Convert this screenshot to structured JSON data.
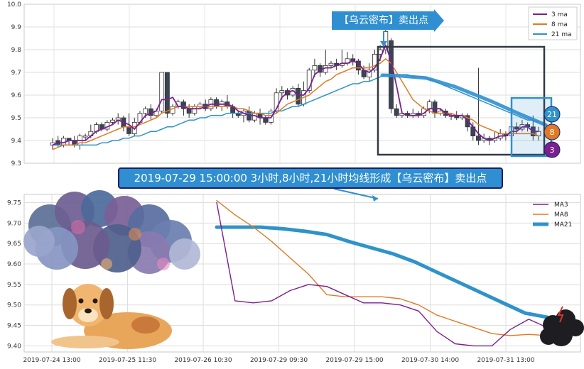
{
  "chart_data": [
    {
      "type": "candlestick",
      "ylim": [
        9.3,
        10.0
      ],
      "yticks": [
        "9.3",
        "9.4",
        "9.5",
        "9.6",
        "9.7",
        "9.8",
        "9.9",
        "10.0"
      ],
      "grid": true,
      "legend_position": "top-right",
      "series": [
        {
          "name": "3 ma",
          "color": "#7b1f8e"
        },
        {
          "name": "8 ma",
          "color": "#e07a24"
        },
        {
          "name": "21 ma",
          "color": "#2f93c9"
        }
      ],
      "candles": [
        [
          9.38,
          9.39,
          9.36,
          9.41
        ],
        [
          9.4,
          9.38,
          9.37,
          9.42
        ],
        [
          9.38,
          9.41,
          9.37,
          9.42
        ],
        [
          9.41,
          9.4,
          9.38,
          9.41
        ],
        [
          9.4,
          9.38,
          9.37,
          9.42
        ],
        [
          9.38,
          9.42,
          9.36,
          9.43
        ],
        [
          9.42,
          9.42,
          9.4,
          9.43
        ],
        [
          9.42,
          9.44,
          9.41,
          9.47
        ],
        [
          9.44,
          9.47,
          9.43,
          9.48
        ],
        [
          9.47,
          9.45,
          9.44,
          9.48
        ],
        [
          9.45,
          9.48,
          9.44,
          9.49
        ],
        [
          9.48,
          9.49,
          9.47,
          9.5
        ],
        [
          9.49,
          9.5,
          9.47,
          9.52
        ],
        [
          9.5,
          9.46,
          9.44,
          9.51
        ],
        [
          9.46,
          9.43,
          9.42,
          9.52
        ],
        [
          9.43,
          9.48,
          9.42,
          9.5
        ],
        [
          9.48,
          9.52,
          9.47,
          9.53
        ],
        [
          9.52,
          9.54,
          9.5,
          9.55
        ],
        [
          9.54,
          9.51,
          9.49,
          9.56
        ],
        [
          9.51,
          9.53,
          9.5,
          9.54
        ],
        [
          9.53,
          9.7,
          9.52,
          9.7
        ],
        [
          9.7,
          9.52,
          9.5,
          9.7
        ],
        [
          9.52,
          9.55,
          9.51,
          9.56
        ],
        [
          9.55,
          9.57,
          9.54,
          9.58
        ],
        [
          9.57,
          9.54,
          9.51,
          9.58
        ],
        [
          9.54,
          9.52,
          9.5,
          9.56
        ],
        [
          9.52,
          9.55,
          9.51,
          9.56
        ],
        [
          9.55,
          9.56,
          9.54,
          9.57
        ],
        [
          9.56,
          9.54,
          9.53,
          9.58
        ],
        [
          9.54,
          9.58,
          9.53,
          9.59
        ],
        [
          9.58,
          9.55,
          9.54,
          9.59
        ],
        [
          9.55,
          9.57,
          9.53,
          9.58
        ],
        [
          9.57,
          9.55,
          9.54,
          9.6
        ],
        [
          9.55,
          9.52,
          9.5,
          9.56
        ],
        [
          9.52,
          9.51,
          9.5,
          9.53
        ],
        [
          9.51,
          9.53,
          9.48,
          9.54
        ],
        [
          9.53,
          9.49,
          9.48,
          9.55
        ],
        [
          9.49,
          9.52,
          9.48,
          9.53
        ],
        [
          9.52,
          9.5,
          9.47,
          9.54
        ],
        [
          9.5,
          9.48,
          9.47,
          9.51
        ],
        [
          9.48,
          9.53,
          9.47,
          9.54
        ],
        [
          9.53,
          9.61,
          9.52,
          9.63
        ],
        [
          9.61,
          9.62,
          9.58,
          9.64
        ],
        [
          9.62,
          9.6,
          9.58,
          9.63
        ],
        [
          9.6,
          9.63,
          9.59,
          9.64
        ],
        [
          9.63,
          9.56,
          9.55,
          9.65
        ],
        [
          9.56,
          9.62,
          9.55,
          9.66
        ],
        [
          9.62,
          9.71,
          9.61,
          9.72
        ],
        [
          9.71,
          9.73,
          9.68,
          9.76
        ],
        [
          9.73,
          9.7,
          9.68,
          9.74
        ],
        [
          9.7,
          9.73,
          9.69,
          9.8
        ],
        [
          9.73,
          9.74,
          9.72,
          9.75
        ],
        [
          9.74,
          9.73,
          9.71,
          9.76
        ],
        [
          9.73,
          9.74,
          9.72,
          9.8
        ],
        [
          9.74,
          9.76,
          9.73,
          9.79
        ],
        [
          9.76,
          9.75,
          9.73,
          9.78
        ],
        [
          9.75,
          9.71,
          9.69,
          9.76
        ],
        [
          9.71,
          9.68,
          9.67,
          9.73
        ],
        [
          9.68,
          9.71,
          9.66,
          9.74
        ],
        [
          9.71,
          9.78,
          9.7,
          9.8
        ],
        [
          9.78,
          9.8,
          9.75,
          9.82
        ],
        [
          9.8,
          9.88,
          9.78,
          9.89
        ],
        [
          9.84,
          9.54,
          9.52,
          9.85
        ],
        [
          9.54,
          9.51,
          9.5,
          9.56
        ],
        [
          9.51,
          9.52,
          9.5,
          9.53
        ],
        [
          9.52,
          9.51,
          9.5,
          9.53
        ],
        [
          9.51,
          9.52,
          9.5,
          9.54
        ],
        [
          9.52,
          9.51,
          9.5,
          9.53
        ],
        [
          9.51,
          9.54,
          9.5,
          9.55
        ],
        [
          9.54,
          9.57,
          9.52,
          9.58
        ],
        [
          9.57,
          9.52,
          9.5,
          9.58
        ],
        [
          9.52,
          9.53,
          9.51,
          9.54
        ],
        [
          9.53,
          9.51,
          9.5,
          9.54
        ],
        [
          9.51,
          9.51,
          9.49,
          9.52
        ],
        [
          9.51,
          9.5,
          9.49,
          9.53
        ],
        [
          9.5,
          9.51,
          9.49,
          9.52
        ],
        [
          9.51,
          9.46,
          9.44,
          9.52
        ],
        [
          9.46,
          9.42,
          9.4,
          9.48
        ],
        [
          9.42,
          9.4,
          9.38,
          9.72
        ],
        [
          9.4,
          9.41,
          9.39,
          9.43
        ],
        [
          9.41,
          9.4,
          9.38,
          9.42
        ],
        [
          9.4,
          9.41,
          9.39,
          9.44
        ],
        [
          9.41,
          9.43,
          9.4,
          9.45
        ],
        [
          9.43,
          9.42,
          9.4,
          9.44
        ],
        [
          9.42,
          9.46,
          9.41,
          9.48
        ],
        [
          9.46,
          9.45,
          9.43,
          9.48
        ],
        [
          9.45,
          9.47,
          9.44,
          9.49
        ],
        [
          9.47,
          9.46,
          9.44,
          9.48
        ],
        [
          9.46,
          9.42,
          9.4,
          9.51
        ],
        [
          9.42,
          9.44,
          9.4,
          9.46
        ]
      ],
      "ma3": [
        9.38,
        9.39,
        9.39,
        9.4,
        9.4,
        9.4,
        9.4,
        9.42,
        9.44,
        9.45,
        9.46,
        9.47,
        9.49,
        9.48,
        9.47,
        9.45,
        9.48,
        9.51,
        9.52,
        9.53,
        9.58,
        9.58,
        9.59,
        9.55,
        9.55,
        9.54,
        9.54,
        9.54,
        9.55,
        9.56,
        9.56,
        9.56,
        9.56,
        9.55,
        9.53,
        9.52,
        9.51,
        9.51,
        9.5,
        9.5,
        9.5,
        9.54,
        9.59,
        9.61,
        9.62,
        9.6,
        9.6,
        9.63,
        9.69,
        9.71,
        9.72,
        9.72,
        9.73,
        9.74,
        9.74,
        9.75,
        9.74,
        9.71,
        9.7,
        9.72,
        9.76,
        9.82,
        9.75,
        9.64,
        9.52,
        9.51,
        9.51,
        9.51,
        9.52,
        9.54,
        9.54,
        9.54,
        9.52,
        9.51,
        9.51,
        9.51,
        9.49,
        9.46,
        9.43,
        9.41,
        9.4,
        9.41,
        9.42,
        9.42,
        9.44,
        9.44,
        9.46,
        9.46,
        9.44,
        9.44
      ],
      "ma8": [
        9.36,
        9.37,
        9.38,
        9.38,
        9.38,
        9.39,
        9.39,
        9.4,
        9.41,
        9.42,
        9.43,
        9.44,
        9.45,
        9.46,
        9.46,
        9.46,
        9.47,
        9.48,
        9.49,
        9.5,
        9.52,
        9.53,
        9.54,
        9.55,
        9.55,
        9.55,
        9.55,
        9.55,
        9.55,
        9.55,
        9.55,
        9.55,
        9.55,
        9.55,
        9.54,
        9.54,
        9.53,
        9.52,
        9.52,
        9.51,
        9.51,
        9.52,
        9.54,
        9.56,
        9.57,
        9.58,
        9.59,
        9.6,
        9.62,
        9.64,
        9.66,
        9.67,
        9.69,
        9.7,
        9.71,
        9.72,
        9.72,
        9.72,
        9.72,
        9.73,
        9.74,
        9.76,
        9.74,
        9.7,
        9.66,
        9.62,
        9.58,
        9.56,
        9.54,
        9.53,
        9.52,
        9.52,
        9.52,
        9.52,
        9.51,
        9.51,
        9.5,
        9.49,
        9.47,
        9.46,
        9.45,
        9.44,
        9.43,
        9.43,
        9.43,
        9.43,
        9.43,
        9.43,
        9.43,
        9.42
      ],
      "ma21": [
        9.38,
        9.38,
        9.38,
        9.38,
        9.38,
        9.38,
        9.38,
        9.38,
        9.38,
        9.39,
        9.39,
        9.4,
        9.4,
        9.41,
        9.41,
        9.42,
        9.42,
        9.43,
        9.44,
        9.44,
        9.45,
        9.46,
        9.46,
        9.47,
        9.48,
        9.49,
        9.49,
        9.5,
        9.5,
        9.51,
        9.51,
        9.51,
        9.52,
        9.52,
        9.52,
        9.52,
        9.52,
        9.52,
        9.52,
        9.52,
        9.52,
        9.53,
        9.53,
        9.54,
        9.55,
        9.55,
        9.56,
        9.57,
        9.58,
        9.59,
        9.6,
        9.61,
        9.62,
        9.63,
        9.64,
        9.65,
        9.65,
        9.66,
        9.66,
        9.67,
        9.68,
        9.69,
        9.69,
        9.69,
        9.69,
        9.69,
        9.68,
        9.68,
        9.68,
        9.67,
        9.66,
        9.65,
        9.64,
        9.63,
        9.62,
        9.61,
        9.6,
        9.59,
        9.58,
        9.57,
        9.56,
        9.55,
        9.54,
        9.53,
        9.52,
        9.51,
        9.5,
        9.49,
        9.49,
        9.48
      ],
      "badges": [
        "21",
        "8",
        "3"
      ]
    },
    {
      "type": "line",
      "ylim": [
        9.385,
        9.77
      ],
      "yticks": [
        "9.40",
        "9.45",
        "9.50",
        "9.55",
        "9.60",
        "9.65",
        "9.70",
        "9.75"
      ],
      "xticks": [
        "2019-07-24 13:00",
        "2019-07-25 11:30",
        "2019-07-26 10:30",
        "2019-07-29 09:30",
        "2019-07-29 15:00",
        "2019-07-30 14:00",
        "2019-07-31 13:00"
      ],
      "grid": true,
      "legend_position": "top-right",
      "series": [
        {
          "name": "MA3",
          "color": "#7b1f8e",
          "values": [
            9.75,
            9.51,
            9.505,
            9.51,
            9.535,
            9.55,
            9.545,
            9.525,
            9.505,
            9.505,
            9.5,
            9.485,
            9.435,
            9.405,
            9.4,
            9.4,
            9.44,
            9.465,
            9.445
          ]
        },
        {
          "name": "MA8",
          "color": "#e07a24",
          "values": [
            9.755,
            9.72,
            9.69,
            9.655,
            9.615,
            9.575,
            9.525,
            9.52,
            9.52,
            9.52,
            9.515,
            9.5,
            9.475,
            9.46,
            9.445,
            9.43,
            9.425,
            9.428,
            9.425
          ]
        },
        {
          "name": "MA21",
          "color": "#2f93c9",
          "values": [
            9.69,
            9.69,
            9.69,
            9.686,
            9.68,
            9.672,
            9.655,
            9.64,
            9.625,
            9.605,
            9.58,
            9.555,
            9.53,
            9.505,
            9.48,
            9.47
          ]
        }
      ],
      "ma3_x": [
        0,
        1,
        2,
        3,
        4,
        5,
        6,
        7,
        8,
        9,
        10,
        11,
        12,
        13,
        14,
        15,
        16,
        17,
        18
      ],
      "ma8_x": [
        0,
        1,
        2,
        3,
        4,
        5,
        6,
        7,
        8,
        9,
        10,
        11,
        12,
        13,
        14,
        15,
        16,
        17,
        18
      ],
      "ma21_x": [
        0,
        1.5,
        3,
        4.5,
        6,
        7.5,
        9,
        10.5,
        12,
        13.5,
        15,
        16.5,
        18,
        19.5,
        21,
        22.5
      ]
    }
  ],
  "annotations": {
    "signal_label": "【乌云密布】卖出点",
    "banner_text": "2019-07-29 15:00:00 3小时,8小时,21小时均线形成【乌云密布】卖出点"
  }
}
